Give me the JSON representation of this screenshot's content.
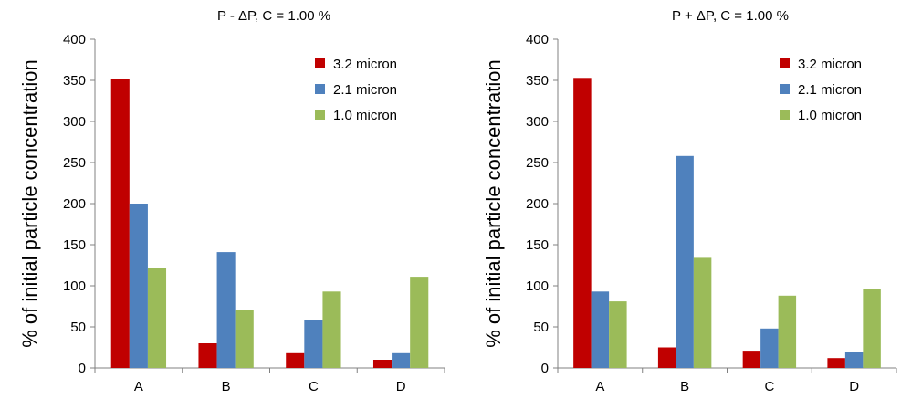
{
  "chart_data": [
    {
      "type": "bar",
      "title": "P - ΔP,  C = 1.00 %",
      "ylabel": "% of initial particle concentration",
      "xlabel": "",
      "categories": [
        "A",
        "B",
        "C",
        "D"
      ],
      "ylim": [
        0,
        400
      ],
      "yticks": [
        0,
        50,
        100,
        150,
        200,
        250,
        300,
        350,
        400
      ],
      "grid": false,
      "legend_position": "top-right",
      "series": [
        {
          "name": "3.2 micron",
          "color": "#c00000",
          "values": [
            352,
            30,
            18,
            10
          ]
        },
        {
          "name": "2.1 micron",
          "color": "#4f81bd",
          "values": [
            200,
            141,
            58,
            18
          ]
        },
        {
          "name": "1.0 micron",
          "color": "#9bbb59",
          "values": [
            122,
            71,
            93,
            111
          ]
        }
      ]
    },
    {
      "type": "bar",
      "title": "P + ΔP,  C = 1.00 %",
      "ylabel": "% of initial particle concentration",
      "xlabel": "",
      "categories": [
        "A",
        "B",
        "C",
        "D"
      ],
      "ylim": [
        0,
        400
      ],
      "yticks": [
        0,
        50,
        100,
        150,
        200,
        250,
        300,
        350,
        400
      ],
      "grid": false,
      "legend_position": "top-right",
      "series": [
        {
          "name": "3.2 micron",
          "color": "#c00000",
          "values": [
            353,
            25,
            21,
            12
          ]
        },
        {
          "name": "2.1 micron",
          "color": "#4f81bd",
          "values": [
            93,
            258,
            48,
            19
          ]
        },
        {
          "name": "1.0 micron",
          "color": "#9bbb59",
          "values": [
            81,
            134,
            88,
            96
          ]
        }
      ]
    }
  ]
}
